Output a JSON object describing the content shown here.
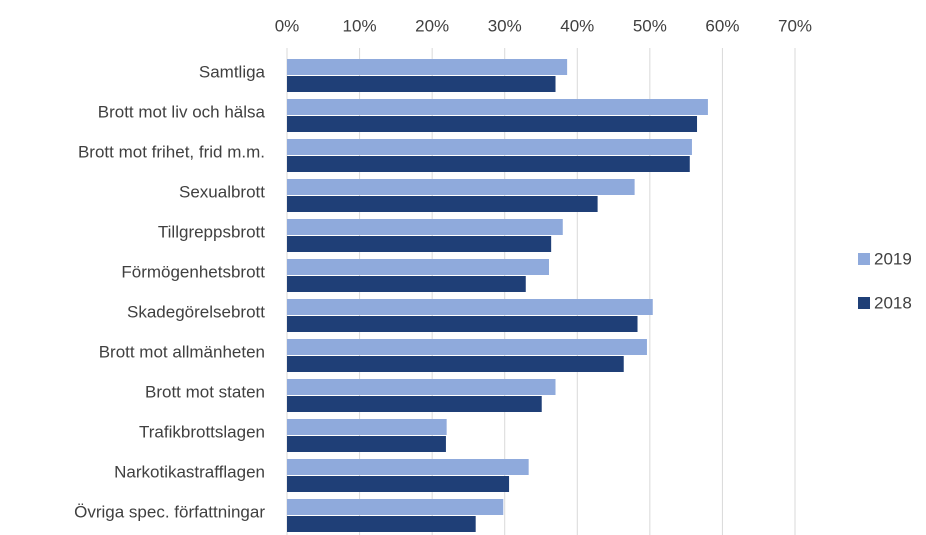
{
  "chart_data": {
    "type": "hbar",
    "categories": [
      "Samtliga",
      "Brott mot liv och hälsa",
      "Brott mot frihet, frid m.m.",
      "Sexualbrott",
      "Tillgreppsbrott",
      "Förmögenhetsbrott",
      "Skadegörelsebrott",
      "Brott mot allmänheten",
      "Brott mot staten",
      "Trafikbrottslagen",
      "Narkotikastrafflagen",
      "Övriga spec. författningar"
    ],
    "series": [
      {
        "name": "2019",
        "color": "#8faadc",
        "values": [
          38.6,
          58.0,
          55.8,
          47.9,
          38.0,
          36.1,
          50.4,
          49.6,
          37.0,
          22.0,
          33.3,
          29.8
        ]
      },
      {
        "name": "2018",
        "color": "#1f3f77",
        "values": [
          37.0,
          56.5,
          55.5,
          42.8,
          36.4,
          32.9,
          48.3,
          46.4,
          35.1,
          21.9,
          30.6,
          26.0
        ]
      }
    ],
    "xlim": [
      0,
      70
    ],
    "xticks": [
      {
        "value": 0,
        "label": "0%"
      },
      {
        "value": 10,
        "label": "10%"
      },
      {
        "value": 20,
        "label": "20%"
      },
      {
        "value": 30,
        "label": "30%"
      },
      {
        "value": 40,
        "label": "40%"
      },
      {
        "value": 50,
        "label": "50%"
      },
      {
        "value": 60,
        "label": "60%"
      },
      {
        "value": 70,
        "label": "70%"
      }
    ],
    "grid": true,
    "legend": "right"
  }
}
